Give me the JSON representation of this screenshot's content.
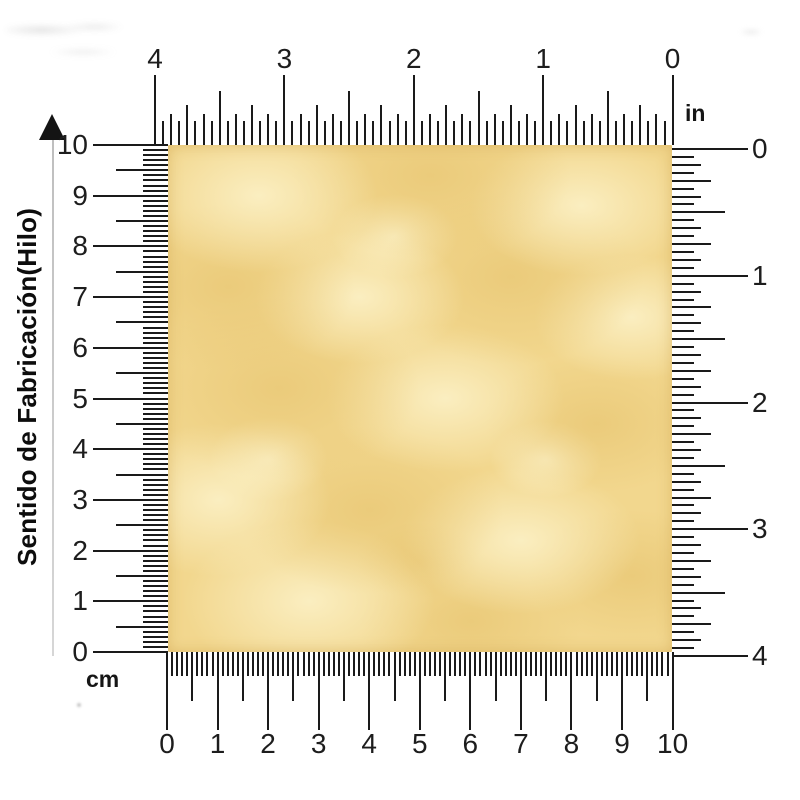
{
  "grain_label": {
    "text": "Sentido de Fabricación(Hilo)"
  },
  "units": {
    "inch_label": "in",
    "cm_label": "cm"
  },
  "rulers": {
    "top_inches": {
      "labels": [
        "4",
        "3",
        "2",
        "1",
        "0"
      ]
    },
    "right_inches": {
      "labels": [
        "0",
        "1",
        "2",
        "3",
        "4"
      ]
    },
    "left_cm": {
      "labels": [
        "10",
        "9",
        "8",
        "7",
        "6",
        "5",
        "4",
        "3",
        "2",
        "1",
        "0"
      ]
    },
    "bottom_cm": {
      "labels": [
        "0",
        "1",
        "2",
        "3",
        "4",
        "5",
        "6",
        "7",
        "8",
        "9",
        "10"
      ]
    }
  },
  "swatch": {
    "base_color": "#f2d78e",
    "mottle_light": "rgba(252,242,201,0.85)",
    "mottle_dark": "rgba(230,195,110,0.60)",
    "edge_shadow": "rgba(193,143,52,0.38)",
    "tick_color": "#1a1a1a"
  }
}
